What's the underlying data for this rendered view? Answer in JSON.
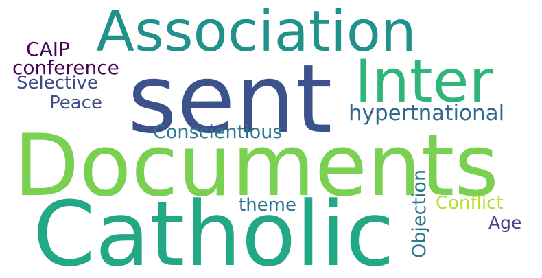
{
  "words": {
    "association": {
      "text": "Association",
      "color": "#21918c"
    },
    "sent": {
      "text": "sent",
      "color": "#3b528b"
    },
    "inter": {
      "text": "Inter",
      "color": "#2fb47c"
    },
    "caip": {
      "text": "CAIP",
      "color": "#440154"
    },
    "conference": {
      "text": "conference",
      "color": "#440154"
    },
    "selective": {
      "text": "Selective",
      "color": "#3e4a89"
    },
    "peace": {
      "text": "Peace",
      "color": "#3e4a89"
    },
    "hypertnational": {
      "text": "hypertnational",
      "color": "#31688e"
    },
    "conscientious": {
      "text": "Conscientious",
      "color": "#2a788e"
    },
    "documents": {
      "text": "Documents",
      "color": "#7ad151"
    },
    "theme": {
      "text": "theme",
      "color": "#2c728e"
    },
    "conflict": {
      "text": "Conflict",
      "color": "#b5de2b"
    },
    "age": {
      "text": "Age",
      "color": "#414487"
    },
    "catholic": {
      "text": "Catholic",
      "color": "#22a884"
    },
    "objection": {
      "text": "Objection",
      "color": "#2a788e"
    }
  }
}
